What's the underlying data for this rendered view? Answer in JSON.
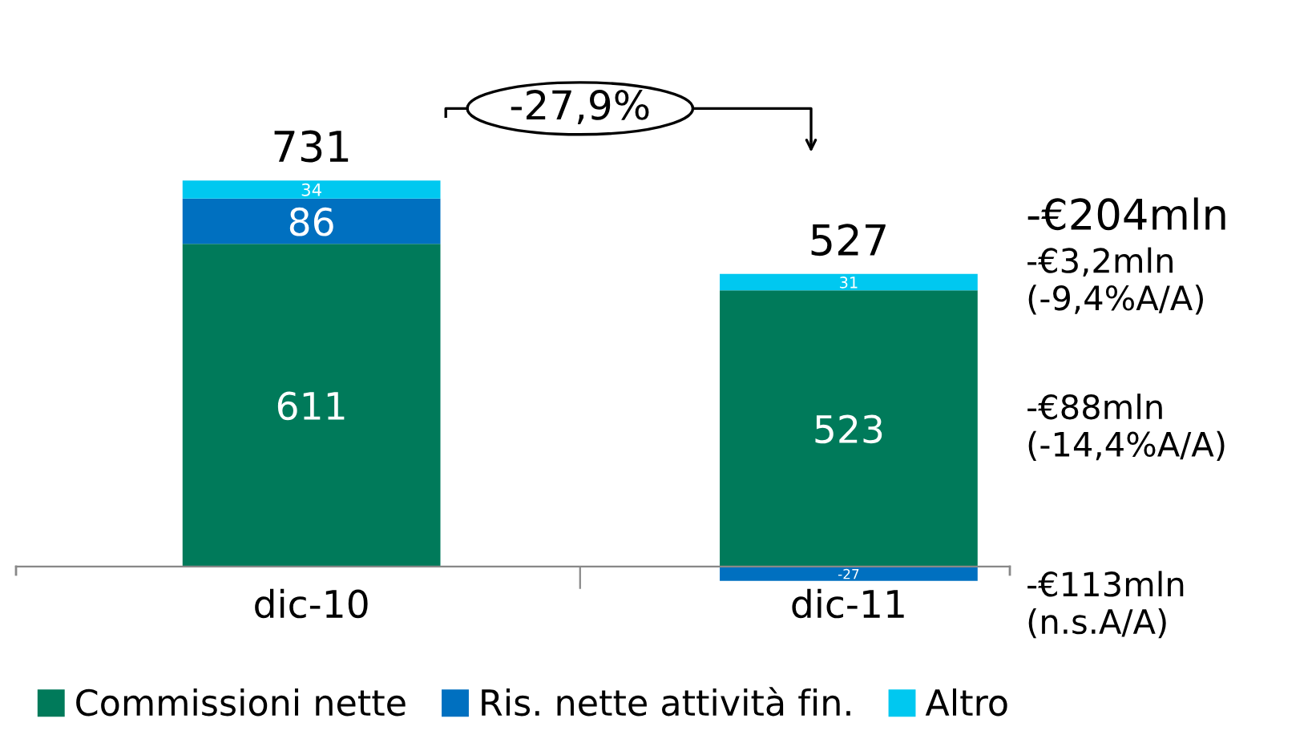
{
  "chart_data": {
    "type": "bar",
    "stacked": true,
    "categories": [
      "dic-10",
      "dic-11"
    ],
    "series": [
      {
        "name": "Commissioni nette",
        "color": "#007a5a",
        "values": [
          611,
          523
        ]
      },
      {
        "name": "Ris. nette attività fin.",
        "color": "#0070c0",
        "values": [
          86,
          -27
        ]
      },
      {
        "name": "Altro",
        "color": "#00c8f0",
        "values": [
          34,
          31
        ]
      }
    ],
    "data_labels": true,
    "totals": [
      "731",
      "527"
    ],
    "legend": "bottom",
    "grid": false,
    "annotations": [
      "-27,9%",
      "-€204mln",
      "-€88mln\n(-14,4%A/A)",
      "-€113mln\n(n.s.A/A)",
      "-€3,2mln\n(-9,4%A/A)"
    ]
  }
}
